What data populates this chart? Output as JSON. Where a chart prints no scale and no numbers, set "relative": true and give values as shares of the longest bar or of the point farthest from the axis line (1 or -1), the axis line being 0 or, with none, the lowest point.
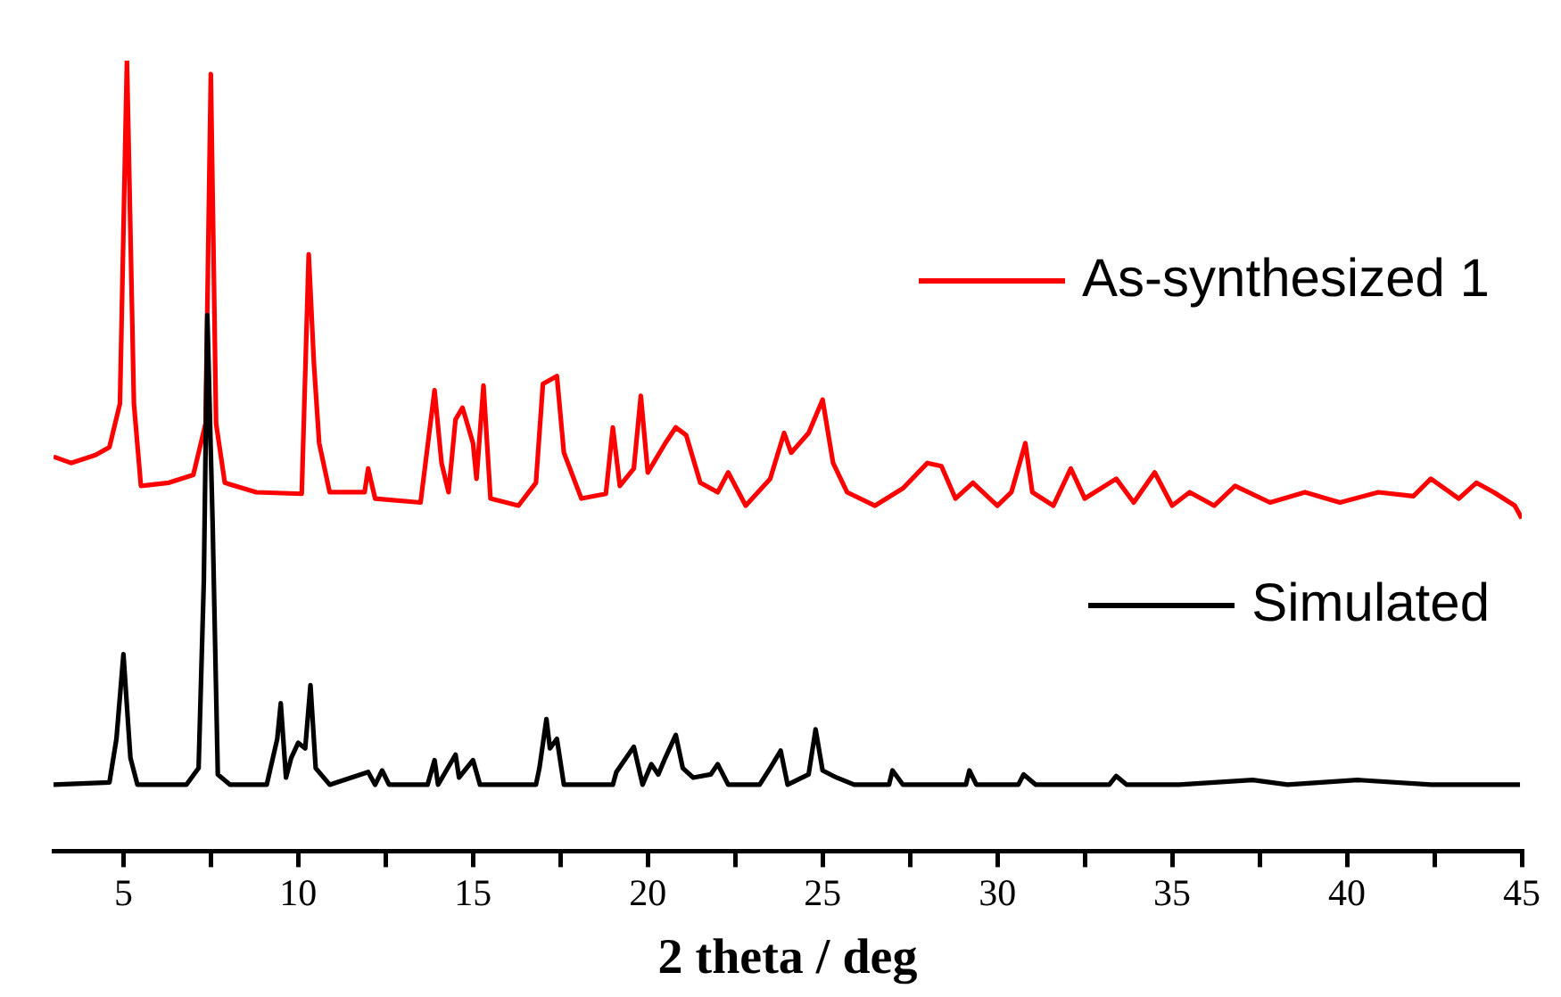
{
  "chart_data": {
    "type": "line",
    "xlabel": "2 theta / deg",
    "relative": true,
    "legend": "right",
    "xlim": [
      3,
      45
    ],
    "xticks": [
      5,
      {
        "value": 7.5,
        "label": null
      },
      10,
      {
        "value": 12.5,
        "label": null
      },
      15,
      {
        "value": 17.5,
        "label": null
      },
      20,
      {
        "value": 22.5,
        "label": null
      },
      25,
      {
        "value": 27.5,
        "label": null
      },
      30,
      {
        "value": 32.5,
        "label": null
      },
      35,
      {
        "value": 37.5,
        "label": null
      },
      40,
      {
        "value": 42.5,
        "label": null
      },
      45
    ],
    "series": [
      {
        "name": "As-synthesized 1",
        "color": "#ff0000",
        "x": [
          3.0,
          3.5,
          4.2,
          4.6,
          4.9,
          5.1,
          5.3,
          5.5,
          6.3,
          7.0,
          7.35,
          7.5,
          7.65,
          7.9,
          8.8,
          10.1,
          10.3,
          10.45,
          10.6,
          10.9,
          11.9,
          12.0,
          12.2,
          13.5,
          13.9,
          14.1,
          14.3,
          14.5,
          14.7,
          15.0,
          15.1,
          15.3,
          15.5,
          16.3,
          16.8,
          17.0,
          17.4,
          17.6,
          18.1,
          18.8,
          19.0,
          19.2,
          19.6,
          19.8,
          20.0,
          20.5,
          20.8,
          21.1,
          21.5,
          22.0,
          22.3,
          22.8,
          23.5,
          23.9,
          24.1,
          24.6,
          25.0,
          25.3,
          25.7,
          26.5,
          27.3,
          28.0,
          28.4,
          28.8,
          29.3,
          30.0,
          30.4,
          30.8,
          31.0,
          31.6,
          32.1,
          32.5,
          33.4,
          33.9,
          34.5,
          35.0,
          35.5,
          36.2,
          36.8,
          37.8,
          38.8,
          39.8,
          40.9,
          41.9,
          42.4,
          43.2,
          43.7,
          44.2,
          44.8,
          45.0
        ],
        "values": [
          0.499,
          0.491,
          0.501,
          0.511,
          0.566,
          1.0,
          0.566,
          0.462,
          0.466,
          0.476,
          0.541,
          0.983,
          0.541,
          0.466,
          0.454,
          0.452,
          0.755,
          0.616,
          0.516,
          0.454,
          0.454,
          0.484,
          0.446,
          0.441,
          0.583,
          0.491,
          0.454,
          0.546,
          0.561,
          0.516,
          0.471,
          0.589,
          0.446,
          0.437,
          0.466,
          0.591,
          0.601,
          0.504,
          0.446,
          0.452,
          0.536,
          0.462,
          0.484,
          0.576,
          0.479,
          0.516,
          0.536,
          0.526,
          0.466,
          0.454,
          0.479,
          0.437,
          0.471,
          0.529,
          0.504,
          0.529,
          0.571,
          0.491,
          0.454,
          0.437,
          0.459,
          0.491,
          0.487,
          0.446,
          0.466,
          0.437,
          0.454,
          0.516,
          0.454,
          0.437,
          0.484,
          0.446,
          0.471,
          0.441,
          0.479,
          0.437,
          0.454,
          0.437,
          0.462,
          0.441,
          0.454,
          0.441,
          0.454,
          0.449,
          0.471,
          0.446,
          0.466,
          0.454,
          0.437,
          0.421
        ]
      },
      {
        "name": "Simulated",
        "color": "#000000",
        "x": [
          3.0,
          4.6,
          4.8,
          5.0,
          5.2,
          5.4,
          6.8,
          7.15,
          7.3,
          7.4,
          7.55,
          7.7,
          8.05,
          9.1,
          9.4,
          9.5,
          9.65,
          9.8,
          10.0,
          10.2,
          10.35,
          10.5,
          10.9,
          12.0,
          12.2,
          12.4,
          12.6,
          13.7,
          13.9,
          14.0,
          14.5,
          14.6,
          15.0,
          15.2,
          16.8,
          16.9,
          17.1,
          17.2,
          17.4,
          17.6,
          19.0,
          19.1,
          19.6,
          19.85,
          20.1,
          20.3,
          20.5,
          20.8,
          21.0,
          21.3,
          21.8,
          22.0,
          22.3,
          23.2,
          23.5,
          23.8,
          24.0,
          24.6,
          24.8,
          25.0,
          25.4,
          25.9,
          26.9,
          27.0,
          27.3,
          29.1,
          29.2,
          29.4,
          30.6,
          30.75,
          31.1,
          33.2,
          33.4,
          33.7,
          35.2,
          37.3,
          38.3,
          40.3,
          42.4,
          44.95
        ],
        "values": [
          0.084,
          0.087,
          0.142,
          0.249,
          0.118,
          0.084,
          0.084,
          0.105,
          0.342,
          0.678,
          0.417,
          0.097,
          0.084,
          0.084,
          0.142,
          0.187,
          0.093,
          0.118,
          0.137,
          0.13,
          0.21,
          0.105,
          0.084,
          0.1,
          0.084,
          0.102,
          0.084,
          0.084,
          0.115,
          0.084,
          0.122,
          0.093,
          0.115,
          0.084,
          0.084,
          0.105,
          0.167,
          0.13,
          0.142,
          0.084,
          0.084,
          0.1,
          0.132,
          0.084,
          0.11,
          0.097,
          0.118,
          0.147,
          0.105,
          0.093,
          0.097,
          0.11,
          0.084,
          0.084,
          0.105,
          0.127,
          0.084,
          0.097,
          0.154,
          0.102,
          0.093,
          0.084,
          0.084,
          0.102,
          0.084,
          0.084,
          0.102,
          0.084,
          0.084,
          0.097,
          0.084,
          0.084,
          0.095,
          0.084,
          0.084,
          0.09,
          0.084,
          0.09,
          0.084,
          0.084
        ]
      }
    ]
  }
}
